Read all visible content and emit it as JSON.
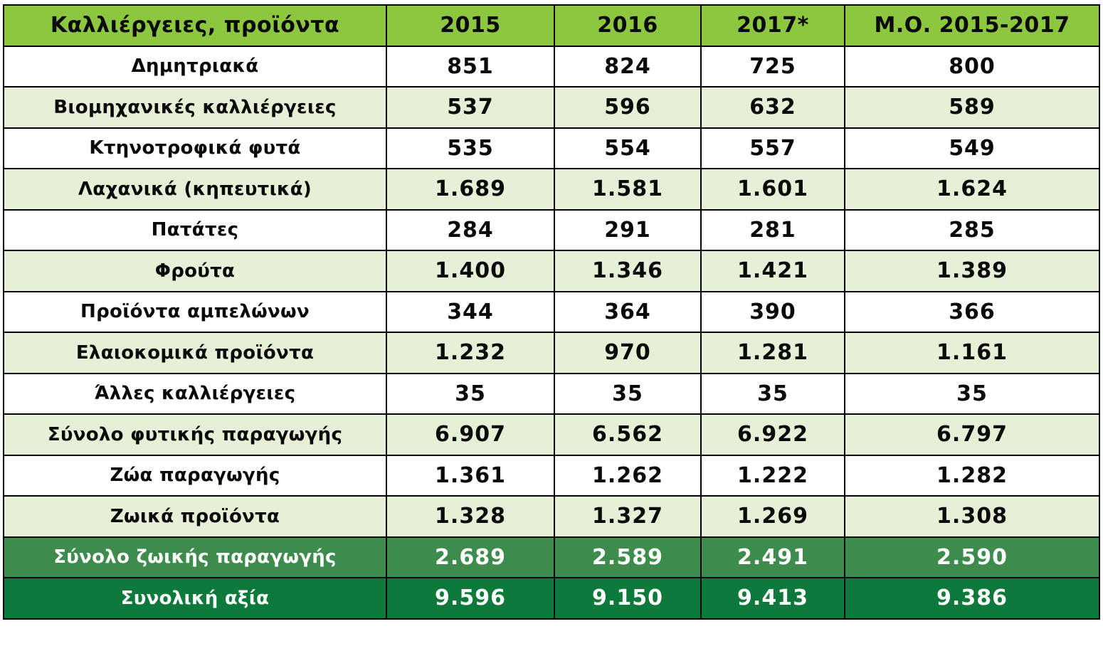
{
  "colors": {
    "header_bg": "#8dc63f",
    "row_white": "#ffffff",
    "row_light_green": "#e6f0d7",
    "subtotal_bg": "#3d8c4d",
    "total_bg": "#0d7a3b"
  },
  "table": {
    "headers": [
      "Καλλιέργειες, προϊόντα",
      "2015",
      "2016",
      "2017*",
      "Μ.Ο. 2015-2017"
    ],
    "rows": [
      [
        "Δημητριακά",
        "851",
        "824",
        "725",
        "800"
      ],
      [
        "Βιομηχανικές καλλιέργειες",
        "537",
        "596",
        "632",
        "589"
      ],
      [
        "Κτηνοτροφικά φυτά",
        "535",
        "554",
        "557",
        "549"
      ],
      [
        "Λαχανικά (κηπευτικά)",
        "1.689",
        "1.581",
        "1.601",
        "1.624"
      ],
      [
        "Πατάτες",
        "284",
        "291",
        "281",
        "285"
      ],
      [
        "Φρούτα",
        "1.400",
        "1.346",
        "1.421",
        "1.389"
      ],
      [
        "Προϊόντα αμπελώνων",
        "344",
        "364",
        "390",
        "366"
      ],
      [
        "Ελαιοκομικά προϊόντα",
        "1.232",
        "970",
        "1.281",
        "1.161"
      ],
      [
        "Άλλες καλλιέργειες",
        "35",
        "35",
        "35",
        "35"
      ],
      [
        "Σύνολο φυτικής παραγωγής",
        "6.907",
        "6.562",
        "6.922",
        "6.797"
      ],
      [
        "Ζώα παραγωγής",
        "1.361",
        "1.262",
        "1.222",
        "1.282"
      ],
      [
        "Ζωικά προϊόντα",
        "1.328",
        "1.327",
        "1.269",
        "1.308"
      ],
      [
        "Σύνολο ζωικής παραγωγής",
        "2.689",
        "2.589",
        "2.491",
        "2.590"
      ],
      [
        "Συνολική αξία",
        "9.596",
        "9.150",
        "9.413",
        "9.386"
      ]
    ]
  }
}
